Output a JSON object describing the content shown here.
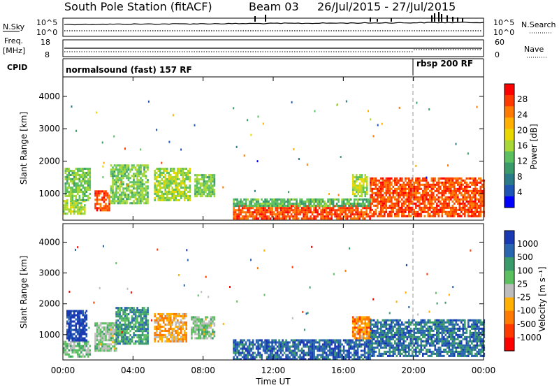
{
  "header": {
    "station": "South Pole Station (fitACF)",
    "beam": "Beam 03",
    "date_range": "26/Jul/2015 - 27/Jul/2015"
  },
  "noise_panel": {
    "left_label": "N.Sky",
    "right_label": "N.Search",
    "top_tick_left": "10^5",
    "bottom_tick_left": "10^0",
    "top_tick_right": "10^5",
    "bottom_tick_right": "10^0"
  },
  "freq_panel": {
    "left_label_1": "Freq.",
    "left_label_2": "[MHz]",
    "right_label": "Nave",
    "left_ticks": [
      "18",
      "8"
    ],
    "right_ticks": [
      "60",
      "0"
    ]
  },
  "cpid_panel": {
    "label": "CPID",
    "segments": [
      {
        "text": "normalsound (fast) 157 RF"
      },
      {
        "text": "rbsp 200 RF"
      }
    ]
  },
  "axes": {
    "ylabel": "Slant Range [km]",
    "xlabel": "Time UT",
    "x_ticks": [
      "00:00",
      "04:00",
      "08:00",
      "12:00",
      "16:00",
      "20:00",
      "00:00"
    ],
    "y_ticks": [
      "1000",
      "2000",
      "3000",
      "4000"
    ]
  },
  "colorbars": {
    "power": {
      "label": "Power [dB]",
      "ticks": [
        "28",
        "24",
        "20",
        "16",
        "12",
        "8",
        "4"
      ],
      "colors": [
        "#ff0000",
        "#ff3a00",
        "#ff7a00",
        "#ffb000",
        "#e8d800",
        "#a8d838",
        "#5cc060",
        "#3a9a6a",
        "#2a7a8a",
        "#1e55b4",
        "#0000ff"
      ]
    },
    "velocity": {
      "label": "Velocity [m s⁻¹]",
      "ticks": [
        "1000",
        "500",
        "100",
        "25",
        "-25",
        "-100",
        "-500",
        "-1000"
      ],
      "colors": [
        "#1a3ab4",
        "#2a66b0",
        "#3a9a6a",
        "#5cc060",
        "#bdbdbd",
        "#ffb000",
        "#ff7a00",
        "#ff3a00",
        "#ff0000"
      ]
    }
  },
  "chart_data": [
    {
      "type": "heatmap",
      "title": "",
      "xlabel": "Time UT",
      "ylabel": "Slant Range [km]",
      "xlim_hours": [
        0,
        24
      ],
      "ylim": [
        180,
        4600
      ],
      "colorbar_label": "Power [dB]",
      "colorbar_range": [
        0,
        32
      ],
      "regions": [
        {
          "t0": 0.0,
          "t1": 1.2,
          "r0": 400,
          "r1": 800,
          "value": 16
        },
        {
          "t0": 0.1,
          "t1": 1.5,
          "r0": 800,
          "r1": 1800,
          "value": 14
        },
        {
          "t0": 1.8,
          "t1": 2.6,
          "r0": 500,
          "r1": 1100,
          "value": 28
        },
        {
          "t0": 2.7,
          "t1": 4.8,
          "r0": 700,
          "r1": 1900,
          "value": 14
        },
        {
          "t0": 5.2,
          "t1": 7.2,
          "r0": 800,
          "r1": 1800,
          "value": 16
        },
        {
          "t0": 7.5,
          "t1": 8.6,
          "r0": 900,
          "r1": 1600,
          "value": 14
        },
        {
          "t0": 9.7,
          "t1": 17.5,
          "r0": 230,
          "r1": 650,
          "value": 28
        },
        {
          "t0": 9.7,
          "t1": 17.5,
          "r0": 650,
          "r1": 850,
          "value": 12
        },
        {
          "t0": 16.5,
          "t1": 17.3,
          "r0": 900,
          "r1": 1600,
          "value": 16
        },
        {
          "t0": 17.5,
          "t1": 24.0,
          "r0": 300,
          "r1": 1500,
          "value": 28
        }
      ]
    },
    {
      "type": "heatmap",
      "title": "",
      "xlabel": "Time UT",
      "ylabel": "Slant Range [km]",
      "xlim_hours": [
        0,
        24
      ],
      "ylim": [
        180,
        4600
      ],
      "colorbar_label": "Velocity [m s⁻¹]",
      "colorbar_range": [
        -1000,
        1000
      ],
      "regions": [
        {
          "t0": 0.0,
          "t1": 1.5,
          "r0": 300,
          "r1": 800,
          "value": 200
        },
        {
          "t0": 0.2,
          "t1": 1.3,
          "r0": 800,
          "r1": 1800,
          "value": 1000
        },
        {
          "t0": 1.8,
          "t1": 3.0,
          "r0": 500,
          "r1": 1400,
          "value": 150
        },
        {
          "t0": 3.0,
          "t1": 4.8,
          "r0": 700,
          "r1": 1900,
          "value": 500
        },
        {
          "t0": 5.2,
          "t1": 7.0,
          "r0": 800,
          "r1": 1700,
          "value": -300
        },
        {
          "t0": 7.3,
          "t1": 8.6,
          "r0": 900,
          "r1": 1600,
          "value": 150
        },
        {
          "t0": 9.7,
          "t1": 17.5,
          "r0": 230,
          "r1": 850,
          "value": 800
        },
        {
          "t0": 16.5,
          "t1": 17.5,
          "r0": 900,
          "r1": 1600,
          "value": -400
        },
        {
          "t0": 17.5,
          "t1": 24.0,
          "r0": 300,
          "r1": 1500,
          "value": 700
        }
      ]
    }
  ]
}
